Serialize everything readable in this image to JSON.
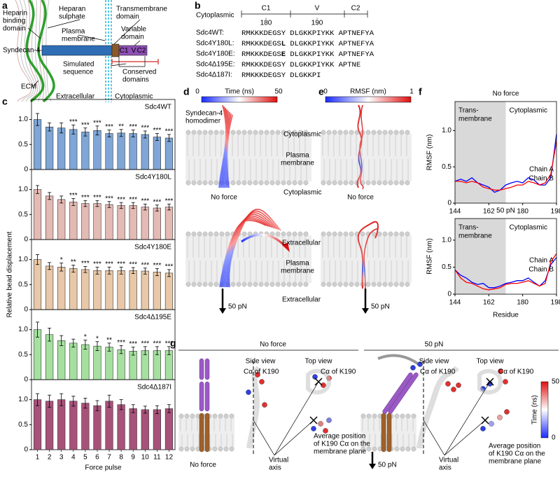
{
  "panels": [
    "a",
    "b",
    "c",
    "d",
    "e",
    "f",
    "g"
  ],
  "schematic": {
    "heparin_binding_domain": [
      "Heparin",
      "binding",
      "domain"
    ],
    "heparan_sulphate": [
      "Heparan",
      "sulphate"
    ],
    "transmembrane_domain": [
      "Transmembrane",
      "domain"
    ],
    "syndecan": "Syndecan-4",
    "plasma_membrane": [
      "Plasma",
      "membrane"
    ],
    "variable_domain": [
      "Variable",
      "domain"
    ],
    "domains": [
      "C1",
      "V",
      "C2"
    ],
    "simulated_sequence": [
      "Simulated",
      "sequence"
    ],
    "conserved_domains": [
      "Conserved",
      "domains"
    ],
    "ecm": "ECM",
    "extracellular": "Extracellular",
    "cytoplasmic": "Cytoplasmic"
  },
  "alignment": {
    "header": "Cytoplasmic",
    "domains": [
      "C1",
      "V",
      "C2"
    ],
    "positions": [
      180,
      190
    ],
    "rows": [
      {
        "name": "Sdc4WT:",
        "sequence": "RMKKKDEGSY DLGKKPIYKK APTNEFYA"
      },
      {
        "name": "Sdc4Y180L:",
        "before": "RMKKKDEGS",
        "mutation": "L",
        "after": " DLGKKPIYKK APTNEFYA"
      },
      {
        "name": "Sdc4Y180E:",
        "before": "RMKKKDEGS",
        "mutation": "E",
        "after": " DLGKKPIYKK APTNEFYA"
      },
      {
        "name": "Sdc4Δ195E:",
        "sequence": "RMKKKDEGSY DLGKKPIYKK APTNE"
      },
      {
        "name": "Sdc4Δ187I:",
        "sequence": "RMKKKDEGSY DLGKKPI"
      }
    ]
  },
  "bead_assay": {
    "y_label": "Relative bead displacement"
  },
  "chart_data": [
    {
      "type": "bar",
      "title": "Sdc4WT",
      "color": "#7fa6d6",
      "values": [
        1.0,
        0.85,
        0.83,
        0.8,
        0.75,
        0.78,
        0.72,
        0.73,
        0.72,
        0.7,
        0.65,
        0.63
      ],
      "errors": [
        0.12,
        0.08,
        0.1,
        0.09,
        0.08,
        0.09,
        0.07,
        0.07,
        0.07,
        0.07,
        0.07,
        0.07
      ],
      "significance": [
        null,
        null,
        null,
        "***",
        "***",
        "***",
        "***",
        "**",
        "***",
        "***",
        "***",
        "***"
      ],
      "ylim": [
        0,
        1.4
      ],
      "yticks": [
        0,
        0.5,
        {
          "value": 1,
          "label": "1.0"
        }
      ]
    },
    {
      "type": "bar",
      "title": "Sdc4Y180L",
      "color": "#e4bab4",
      "values": [
        1.0,
        0.87,
        0.8,
        0.75,
        0.72,
        0.72,
        0.7,
        0.68,
        0.68,
        0.65,
        0.63,
        0.65
      ],
      "errors": [
        0.08,
        0.07,
        0.07,
        0.07,
        0.06,
        0.06,
        0.06,
        0.06,
        0.06,
        0.06,
        0.06,
        0.06
      ],
      "significance": [
        null,
        null,
        null,
        "***",
        "***",
        "***",
        "***",
        "***",
        "***",
        "***",
        "***",
        "***"
      ],
      "ylim": [
        0,
        1.4
      ],
      "yticks": [
        0,
        0.5,
        {
          "value": 1,
          "label": "1.0"
        }
      ]
    },
    {
      "type": "bar",
      "title": "Sdc4Y180E",
      "color": "#e8c8a8",
      "values": [
        1.0,
        0.87,
        0.85,
        0.82,
        0.8,
        0.78,
        0.78,
        0.78,
        0.78,
        0.77,
        0.75,
        0.73
      ],
      "errors": [
        0.1,
        0.07,
        0.08,
        0.07,
        0.06,
        0.07,
        0.07,
        0.07,
        0.06,
        0.06,
        0.07,
        0.07
      ],
      "significance": [
        null,
        null,
        "*",
        "**",
        "***",
        "***",
        "***",
        "***",
        "***",
        "***",
        "***",
        "***"
      ],
      "ylim": [
        0,
        1.4
      ],
      "yticks": [
        0,
        0.5,
        {
          "value": 1,
          "label": "1.0"
        }
      ]
    },
    {
      "type": "bar",
      "title": "Sdc4Δ195E",
      "color": "#a6e0a0",
      "values": [
        1.0,
        0.9,
        0.78,
        0.73,
        0.7,
        0.67,
        0.65,
        0.6,
        0.57,
        0.58,
        0.58,
        0.58
      ],
      "errors": [
        0.15,
        0.13,
        0.1,
        0.08,
        0.09,
        0.09,
        0.08,
        0.08,
        0.08,
        0.08,
        0.08,
        0.08
      ],
      "significance": [
        null,
        null,
        null,
        null,
        "*",
        "*",
        "**",
        "***",
        "***",
        "***",
        "***",
        "***"
      ],
      "ylim": [
        0,
        1.4
      ],
      "yticks": [
        0,
        0.5,
        {
          "value": 1,
          "label": "1.0"
        }
      ]
    },
    {
      "type": "bar",
      "title": "Sdc4Δ187I",
      "color": "#a8527a",
      "categories": [
        "1",
        "2",
        "3",
        "4",
        "5",
        "6",
        "7",
        "8",
        "9",
        "10",
        "11",
        "12"
      ],
      "values": [
        1.0,
        0.97,
        1.0,
        0.97,
        0.93,
        0.88,
        0.97,
        0.9,
        0.82,
        0.8,
        0.8,
        0.82
      ],
      "errors": [
        0.12,
        0.12,
        0.12,
        0.1,
        0.1,
        0.1,
        0.12,
        0.1,
        0.08,
        0.07,
        0.08,
        0.08
      ],
      "significance": [
        null,
        null,
        null,
        null,
        null,
        null,
        null,
        null,
        null,
        null,
        null,
        null
      ],
      "x_label": "Force pulse",
      "ylim": [
        0,
        1.4
      ],
      "yticks": [
        0,
        0.5,
        {
          "value": 1,
          "label": "1.0"
        }
      ]
    },
    {
      "type": "line",
      "title": "No force",
      "x": [
        144,
        147,
        150,
        153,
        156,
        159,
        162,
        165,
        168,
        171,
        174,
        177,
        180,
        183,
        186,
        189,
        192,
        195,
        198
      ],
      "series": [
        {
          "name": "Chain A",
          "color": "#0000ff",
          "values": [
            0.3,
            0.33,
            0.3,
            0.35,
            0.28,
            0.25,
            0.22,
            0.15,
            0.18,
            0.25,
            0.28,
            0.3,
            0.28,
            0.35,
            0.32,
            0.25,
            0.25,
            0.35,
            0.95
          ]
        },
        {
          "name": "Chain B",
          "color": "#ff0000",
          "values": [
            0.3,
            0.3,
            0.28,
            0.3,
            0.28,
            0.22,
            0.2,
            0.18,
            0.18,
            0.2,
            0.22,
            0.25,
            0.25,
            0.3,
            0.28,
            0.25,
            0.28,
            0.4,
            0.85
          ]
        }
      ],
      "xlim": [
        144,
        198
      ],
      "xticks": [
        144,
        162,
        180,
        198
      ],
      "ylim": [
        0,
        1.4
      ],
      "yticks": [
        0,
        0.5,
        {
          "value": 1,
          "label": "1.0"
        }
      ],
      "y_label": "RMSF (nm)",
      "shade": [
        144,
        171
      ],
      "region_labels": [
        [
          "Trans-",
          "membrane"
        ],
        [
          "Cytoplasmic"
        ]
      ]
    },
    {
      "type": "line",
      "title": "50 pN",
      "x": [
        144,
        147,
        150,
        153,
        156,
        159,
        162,
        165,
        168,
        171,
        174,
        177,
        180,
        183,
        186,
        189,
        192,
        195,
        198
      ],
      "series": [
        {
          "name": "Chain A",
          "color": "#0000ff",
          "values": [
            0.45,
            0.35,
            0.3,
            0.22,
            0.18,
            0.2,
            0.12,
            0.12,
            0.15,
            0.2,
            0.22,
            0.25,
            0.25,
            0.3,
            0.22,
            0.15,
            0.25,
            0.55,
            0.68
          ]
        },
        {
          "name": "Chain B",
          "color": "#ff0000",
          "values": [
            0.45,
            0.3,
            0.22,
            0.2,
            0.15,
            0.1,
            0.08,
            0.1,
            0.12,
            0.18,
            0.2,
            0.2,
            0.22,
            0.25,
            0.2,
            0.15,
            0.2,
            0.6,
            0.75
          ]
        }
      ],
      "xlim": [
        144,
        198
      ],
      "xticks": [
        144,
        162,
        180,
        198
      ],
      "ylim": [
        0,
        1.4
      ],
      "yticks": [
        0,
        0.5,
        {
          "value": 1,
          "label": "1.0"
        }
      ],
      "y_label": "RMSF (nm)",
      "x_label": "Residue",
      "shade": [
        144,
        171
      ],
      "region_labels": [
        [
          "Trans-",
          "membrane"
        ],
        [
          "Cytoplasmic"
        ]
      ]
    }
  ],
  "simulation": {
    "time_colorbar": {
      "title": "Time (ns)",
      "ticks": [
        0,
        50
      ]
    },
    "rmsf_colorbar": {
      "title": "RMSF (nm)",
      "ticks": [
        0,
        1
      ]
    },
    "homodimer": [
      "Syndecan-4",
      "homodimer"
    ],
    "cytoplasmic": "Cytoplasmic",
    "plasma_membrane": [
      "Plasma",
      "membrane"
    ],
    "extracellular": "Extracellular",
    "no_force": "No force",
    "force": "50 pN"
  },
  "orientation": {
    "no_force": "No force",
    "force": "50 pN",
    "side_view": "Side view",
    "top_view": "Top view",
    "k190": "Cα of K190",
    "average": [
      "Average position",
      "of K190 Cα on the",
      "membrane plane"
    ],
    "virtual_axis": [
      "Virtual",
      "axis"
    ],
    "colorbar": {
      "title": "Time (ns)",
      "ticks": [
        0,
        50
      ]
    }
  }
}
